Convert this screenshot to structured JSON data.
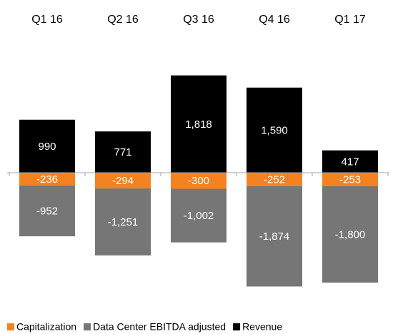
{
  "chart_data": {
    "type": "stacked_bar",
    "categories": [
      "Q1 16",
      "Q2 16",
      "Q3 16",
      "Q4 16",
      "Q1 17"
    ],
    "series": [
      {
        "name": "Capitalization",
        "color": "#f58220",
        "values": [
          -236,
          -294,
          -300,
          -252,
          -253
        ],
        "value_labels": [
          "-236",
          "-294",
          "-300",
          "-252",
          "-253"
        ]
      },
      {
        "name": "Data Center EBITDA adjusted",
        "color": "#767676",
        "values": [
          -952,
          -1251,
          -1002,
          -1874,
          -1800
        ],
        "value_labels": [
          "-952",
          "-1,251",
          "-1,002",
          "-1,874",
          "-1,800"
        ]
      },
      {
        "name": "Revenue",
        "color": "#000000",
        "values": [
          990,
          771,
          1818,
          1590,
          417
        ],
        "value_labels": [
          "990",
          "771",
          "1,818",
          "1,590",
          "417"
        ]
      }
    ],
    "legend": "bottom"
  }
}
